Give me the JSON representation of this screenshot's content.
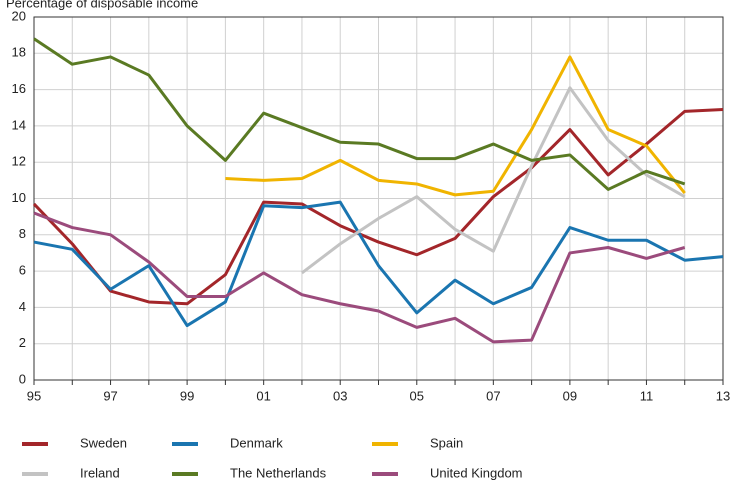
{
  "chart_data": {
    "type": "line",
    "title": "Percentage of disposable income",
    "categories": [
      "95",
      null,
      "97",
      null,
      "99",
      null,
      "01",
      null,
      "03",
      null,
      "05",
      null,
      "07",
      null,
      "09",
      null,
      "11",
      null,
      "13"
    ],
    "ylim": [
      0,
      20
    ],
    "yticks": [
      0,
      2,
      4,
      6,
      8,
      10,
      12,
      14,
      16,
      18,
      20
    ],
    "grid": true,
    "series": [
      {
        "name": "Sweden",
        "color": "#a3262a",
        "values": [
          9.7,
          7.5,
          4.9,
          4.3,
          4.2,
          5.8,
          9.8,
          9.7,
          8.5,
          7.6,
          6.9,
          7.8,
          10.1,
          11.7,
          13.8,
          11.3,
          13.0,
          14.8,
          14.9
        ]
      },
      {
        "name": "Denmark",
        "color": "#1a75b0",
        "values": [
          7.6,
          7.2,
          5.0,
          6.3,
          3.0,
          4.3,
          9.6,
          9.5,
          9.8,
          6.3,
          3.7,
          5.5,
          4.2,
          5.1,
          8.4,
          7.7,
          7.7,
          6.6,
          6.8
        ]
      },
      {
        "name": "Spain",
        "color": "#f0b400",
        "values": [
          null,
          null,
          null,
          null,
          null,
          11.1,
          11.0,
          11.1,
          12.1,
          11.0,
          10.8,
          10.2,
          10.4,
          13.8,
          17.8,
          13.8,
          12.9,
          10.3,
          null
        ]
      },
      {
        "name": "Ireland",
        "color": "#c3c3c3",
        "values": [
          null,
          null,
          null,
          null,
          null,
          null,
          null,
          5.9,
          7.5,
          8.9,
          10.1,
          8.3,
          7.1,
          11.8,
          16.1,
          13.2,
          11.3,
          10.1,
          null
        ]
      },
      {
        "name": "The Netherlands",
        "color": "#5a7a23",
        "values": [
          18.8,
          17.4,
          17.8,
          16.8,
          14.0,
          12.1,
          14.7,
          13.9,
          13.1,
          13.0,
          12.2,
          12.2,
          13.0,
          12.1,
          12.4,
          10.5,
          11.5,
          10.8,
          null
        ]
      },
      {
        "name": "United Kingdom",
        "color": "#9b4b7c",
        "values": [
          9.2,
          8.4,
          8.0,
          6.5,
          4.6,
          4.6,
          5.9,
          4.7,
          4.2,
          3.8,
          2.9,
          3.4,
          2.1,
          2.2,
          7.0,
          7.3,
          6.7,
          7.3,
          null
        ]
      }
    ]
  }
}
